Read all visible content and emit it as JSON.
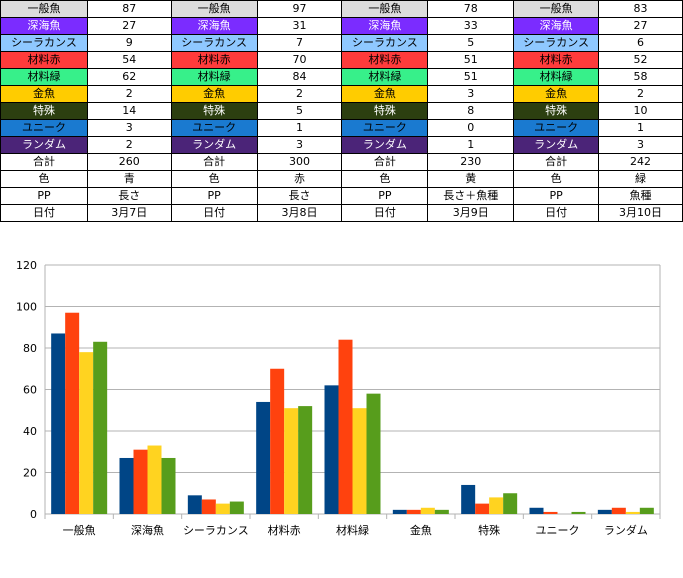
{
  "table": {
    "rows": [
      {
        "label": "一般魚",
        "values": [
          "87",
          "97",
          "78",
          "83"
        ]
      },
      {
        "label": "深海魚",
        "values": [
          "27",
          "31",
          "33",
          "27"
        ]
      },
      {
        "label": "シーラカンス",
        "values": [
          "9",
          "7",
          "5",
          "6"
        ]
      },
      {
        "label": "材料赤",
        "values": [
          "54",
          "70",
          "51",
          "52"
        ]
      },
      {
        "label": "材料緑",
        "values": [
          "62",
          "84",
          "51",
          "58"
        ]
      },
      {
        "label": "金魚",
        "values": [
          "2",
          "2",
          "3",
          "2"
        ]
      },
      {
        "label": "特殊",
        "values": [
          "14",
          "5",
          "8",
          "10"
        ]
      },
      {
        "label": "ユニーク",
        "values": [
          "3",
          "1",
          "0",
          "1"
        ]
      },
      {
        "label": "ランダム",
        "values": [
          "2",
          "3",
          "1",
          "3"
        ]
      }
    ],
    "total": {
      "label": "合計",
      "values": [
        "260",
        "300",
        "230",
        "242"
      ]
    },
    "color": {
      "label": "色",
      "values": [
        "青",
        "赤",
        "黄",
        "緑"
      ]
    },
    "pp": {
      "label": "PP",
      "values": [
        "長さ",
        "長さ",
        "長さ＋魚種",
        "魚種"
      ]
    },
    "date": {
      "label": "日付",
      "values": [
        "3月7日",
        "3月8日",
        "3月9日",
        "3月10日"
      ]
    }
  },
  "label_colors": {
    "一般魚": "#dcdcdc",
    "深海魚": "#7b2cff",
    "シーラカンス": "#8fc8ff",
    "材料赤": "#ff3b3b",
    "材料緑": "#37f08a",
    "金魚": "#ffcc00",
    "特殊": "#2c3f10",
    "ユニーク": "#1a7ad0",
    "ランダム": "#4b2478"
  },
  "label_text_colors": {
    "一般魚": "#000000",
    "深海魚": "#ffffff",
    "シーラカンス": "#000000",
    "材料赤": "#000000",
    "材料緑": "#000000",
    "金魚": "#000000",
    "特殊": "#ffffff",
    "ユニーク": "#000000",
    "ランダム": "#ffffff"
  },
  "chart_data": {
    "type": "bar",
    "categories": [
      "一般魚",
      "深海魚",
      "シーラカンス",
      "材料赤",
      "材料緑",
      "金魚",
      "特殊",
      "ユニーク",
      "ランダム"
    ],
    "series": [
      {
        "color": "#004586",
        "values": [
          87,
          27,
          9,
          54,
          62,
          2,
          14,
          3,
          2
        ]
      },
      {
        "color": "#ff420e",
        "values": [
          97,
          31,
          7,
          70,
          84,
          2,
          5,
          1,
          3
        ]
      },
      {
        "color": "#ffd320",
        "values": [
          78,
          33,
          5,
          51,
          51,
          3,
          8,
          0,
          1
        ]
      },
      {
        "color": "#579d1c",
        "values": [
          83,
          27,
          6,
          52,
          58,
          2,
          10,
          1,
          3
        ]
      }
    ],
    "ylim": [
      0,
      120
    ],
    "yticks": [
      0,
      20,
      40,
      60,
      80,
      100,
      120
    ],
    "grid": true,
    "legend": "none"
  }
}
